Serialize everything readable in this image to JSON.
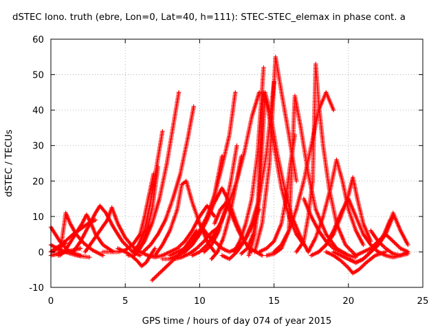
{
  "chart_data": {
    "type": "scatter",
    "title": "dSTEC Iono. truth (ebre, Lon=0, Lat=40, h=111): STEC-STEC_elemax in phase cont. a",
    "xlabel": "GPS time / hours of day 074 of year 2015",
    "ylabel": "dSTEC  / TECUs",
    "xlim": [
      0,
      25
    ],
    "ylim": [
      -10,
      60
    ],
    "x_ticks": [
      0,
      5,
      10,
      15,
      20,
      25
    ],
    "y_ticks": [
      -10,
      0,
      10,
      20,
      30,
      40,
      50,
      60
    ],
    "grid": true,
    "marker": "+",
    "color": "#ff0000",
    "arcs": [
      {
        "x": [
          0.0,
          0.3,
          0.6,
          0.9,
          1.2,
          1.6,
          2.0
        ],
        "y": [
          7,
          5,
          3,
          1.5,
          0.3,
          -0.5,
          -1
        ]
      },
      {
        "x": [
          0.0,
          0.4,
          0.8,
          1.2,
          1.6,
          2.0,
          2.6
        ],
        "y": [
          2,
          1,
          0.3,
          -0.3,
          -0.8,
          -1.2,
          -1.5
        ]
      },
      {
        "x": [
          0.0,
          0.3,
          0.6,
          1.0
        ],
        "y": [
          0,
          0.5,
          1.5,
          2.5
        ]
      },
      {
        "x": [
          0.0,
          0.5,
          1.0,
          1.5,
          2.0
        ],
        "y": [
          -1,
          -0.5,
          0,
          0.5,
          1
        ]
      },
      {
        "x": [
          0.0,
          0.3,
          0.7,
          1.1,
          1.5,
          2.0,
          2.5,
          3.0
        ],
        "y": [
          0,
          1,
          2,
          3.5,
          5,
          6.5,
          8,
          9
        ]
      },
      {
        "x": [
          0.5,
          0.7,
          1.0,
          1.3,
          1.7,
          2.2,
          2.8,
          3.5
        ],
        "y": [
          -1,
          2,
          11,
          8,
          5,
          2.5,
          0.5,
          -1
        ]
      },
      {
        "x": [
          0.6,
          0.9,
          1.2,
          1.5,
          1.8,
          2.1,
          2.4,
          2.7,
          3.0,
          3.5,
          4.2
        ],
        "y": [
          -1,
          0,
          2,
          4,
          6,
          8,
          10.5,
          8,
          5,
          2,
          0
        ]
      },
      {
        "x": [
          1.5,
          2.0,
          2.5,
          3.0,
          3.3,
          3.7,
          4.2,
          4.8,
          5.5,
          6.0
        ],
        "y": [
          0,
          3,
          7,
          11,
          13,
          11,
          7,
          3,
          0,
          -1
        ]
      },
      {
        "x": [
          2.3,
          2.8,
          3.3,
          3.8,
          4.1,
          4.5,
          5.0,
          5.5,
          6.0,
          6.5
        ],
        "y": [
          0,
          3,
          6,
          9,
          12.5,
          8,
          4,
          1.5,
          0,
          -1
        ]
      },
      {
        "x": [
          3.5,
          4.0,
          4.5,
          5.0,
          5.5,
          6.0,
          6.3,
          6.6,
          6.9
        ],
        "y": [
          0,
          0,
          0,
          0.5,
          2,
          5,
          10,
          16,
          22
        ]
      },
      {
        "x": [
          4.5,
          5.0,
          5.4,
          5.8,
          6.1,
          6.4,
          6.7,
          7.0
        ],
        "y": [
          1,
          0,
          -1,
          -2.5,
          -4,
          -3,
          -1,
          1
        ]
      },
      {
        "x": [
          5.2,
          5.6,
          6.0,
          6.4,
          6.8,
          7.0,
          7.2
        ],
        "y": [
          -1,
          -1,
          1,
          5,
          12,
          18,
          24
        ]
      },
      {
        "x": [
          5.5,
          5.9,
          6.3,
          6.7,
          7.1,
          7.5
        ],
        "y": [
          0,
          2,
          6,
          14,
          24,
          34
        ]
      },
      {
        "x": [
          5.8,
          6.3,
          6.8,
          7.3,
          7.8,
          8.2,
          8.6
        ],
        "y": [
          0,
          3,
          8,
          15,
          25,
          35,
          45
        ]
      },
      {
        "x": [
          6.2,
          6.7,
          7.2,
          7.7,
          8.2,
          8.7,
          9.2,
          9.6
        ],
        "y": [
          0,
          2,
          5,
          9,
          15,
          22,
          32,
          41
        ]
      },
      {
        "x": [
          6.5,
          7.0,
          7.5,
          8.0,
          8.5,
          9.0,
          9.5,
          10.0,
          10.5,
          11.0
        ],
        "y": [
          -1,
          -1.5,
          -1,
          0,
          1,
          3,
          6,
          10,
          13,
          10
        ]
      },
      {
        "x": [
          6.8,
          7.3,
          7.8,
          8.3,
          8.8,
          9.3,
          9.8
        ],
        "y": [
          -8,
          -6,
          -4,
          -2,
          0,
          3,
          6
        ]
      },
      {
        "x": [
          7.0,
          7.5,
          8.0,
          8.5,
          8.8,
          9.1,
          9.5,
          10.0,
          10.5,
          11.0
        ],
        "y": [
          -1,
          2,
          6,
          12,
          19,
          20,
          14,
          8,
          3,
          0
        ]
      },
      {
        "x": [
          7.5,
          8.0,
          8.5,
          9.0,
          9.5,
          10.0,
          10.5,
          11.0,
          11.5
        ],
        "y": [
          -2,
          -2,
          -1,
          0,
          2,
          5,
          10,
          16,
          27
        ]
      },
      {
        "x": [
          8.0,
          8.5,
          9.0,
          9.5,
          10.0,
          10.5,
          11.0,
          11.5,
          12.0,
          12.4
        ],
        "y": [
          -1,
          0,
          1,
          3,
          6,
          10,
          16,
          24,
          33,
          45
        ]
      },
      {
        "x": [
          8.3,
          8.8,
          9.3,
          9.8,
          10.3,
          10.8,
          11.3
        ],
        "y": [
          -2,
          -1.5,
          -0.5,
          1,
          3,
          5.5,
          7
        ]
      },
      {
        "x": [
          9.0,
          9.5,
          10.0,
          10.5,
          11.0,
          11.5,
          12.0,
          12.5,
          13.0,
          13.5
        ],
        "y": [
          0,
          2,
          5,
          9,
          14,
          18,
          14,
          8,
          3,
          0
        ]
      },
      {
        "x": [
          9.5,
          10.0,
          10.5,
          11.0,
          11.5,
          12.0,
          12.5,
          13.0,
          13.5,
          14.0
        ],
        "y": [
          -1,
          0,
          2,
          5,
          9,
          14,
          20,
          28,
          38,
          45
        ]
      },
      {
        "x": [
          10.0,
          10.5,
          11.0,
          11.5,
          12.0,
          12.5,
          13.0,
          13.5,
          14.0
        ],
        "y": [
          8,
          5,
          3,
          1,
          0,
          1,
          3,
          7,
          12
        ]
      },
      {
        "x": [
          10.3,
          10.8,
          11.3,
          11.7,
          12.1,
          12.5
        ],
        "y": [
          0,
          2,
          6,
          12,
          20,
          30
        ]
      },
      {
        "x": [
          10.8,
          11.2,
          11.6,
          12.0,
          12.4,
          12.8
        ],
        "y": [
          -2,
          0,
          4,
          10,
          18,
          27
        ]
      },
      {
        "x": [
          11.0,
          11.4,
          11.8,
          12.2,
          12.6,
          13.0,
          13.4,
          13.8,
          14.2
        ],
        "y": [
          8,
          12,
          14,
          10,
          6,
          3,
          1,
          0,
          -1
        ]
      },
      {
        "x": [
          11.5,
          12.0,
          12.5,
          13.0,
          13.5,
          14.0,
          14.5,
          15.0
        ],
        "y": [
          -1,
          -2,
          0,
          3,
          8,
          15,
          28,
          48
        ]
      },
      {
        "x": [
          12.3,
          12.7,
          13.1,
          13.5,
          13.9,
          14.3
        ],
        "y": [
          0,
          3,
          8,
          15,
          28,
          52
        ]
      },
      {
        "x": [
          12.8,
          13.2,
          13.6,
          13.9,
          14.1,
          14.3,
          14.6,
          15.0,
          15.5,
          16.0,
          16.5,
          17.0
        ],
        "y": [
          -0.5,
          1,
          5,
          13,
          30,
          45,
          40,
          30,
          18,
          10,
          5,
          2
        ]
      },
      {
        "x": [
          13.3,
          13.7,
          14.0,
          14.4,
          14.8,
          15.2,
          15.7,
          16.2,
          16.8,
          17.3
        ],
        "y": [
          -1,
          5,
          15,
          45,
          38,
          28,
          18,
          10,
          4,
          0
        ]
      },
      {
        "x": [
          13.7,
          14.2,
          14.7,
          15.1,
          15.5,
          16.0,
          16.5
        ],
        "y": [
          0,
          8,
          25,
          55,
          45,
          33,
          20
        ]
      },
      {
        "x": [
          14.0,
          14.5,
          15.0,
          15.5,
          15.8,
          16.1,
          16.4
        ],
        "y": [
          0,
          1,
          3,
          8,
          15,
          25,
          33
        ]
      },
      {
        "x": [
          14.5,
          15.0,
          15.5,
          16.0,
          16.4,
          16.8,
          17.3,
          17.8,
          18.5,
          19.2,
          20.0
        ],
        "y": [
          -1,
          -0.5,
          1,
          6,
          44,
          35,
          22,
          12,
          5,
          1,
          -1
        ]
      },
      {
        "x": [
          15.0,
          15.5,
          16.0,
          16.5,
          17.0,
          17.5,
          18.0,
          18.5,
          19.0
        ],
        "y": [
          0,
          2,
          6,
          12,
          20,
          30,
          40,
          45,
          40
        ]
      },
      {
        "x": [
          16.5,
          17.0,
          17.3,
          17.6,
          17.8,
          18.0,
          18.3,
          18.7,
          19.2,
          19.8,
          20.5
        ],
        "y": [
          0,
          3,
          10,
          20,
          53,
          42,
          30,
          18,
          8,
          2,
          -1
        ]
      },
      {
        "x": [
          17.0,
          17.5,
          18.0,
          18.5,
          19.0,
          19.5,
          20.0,
          20.5
        ],
        "y": [
          15,
          10,
          6,
          3,
          1,
          0,
          -1,
          -1.5
        ]
      },
      {
        "x": [
          17.3,
          17.8,
          18.3,
          18.8,
          19.2,
          19.6,
          20.0,
          20.5,
          21.0
        ],
        "y": [
          0,
          4,
          10,
          18,
          26,
          20,
          12,
          6,
          2
        ]
      },
      {
        "x": [
          17.5,
          18.0,
          18.5,
          19.0,
          19.5,
          20.0,
          20.3,
          20.6,
          21.0,
          21.5
        ],
        "y": [
          -1,
          0,
          2,
          5,
          10,
          16,
          21,
          15,
          8,
          3
        ]
      },
      {
        "x": [
          18.0,
          18.5,
          19.0,
          19.5,
          20.0,
          20.5,
          21.0,
          21.5,
          22.0
        ],
        "y": [
          0,
          2,
          6,
          11,
          15,
          10,
          5,
          2,
          0
        ]
      },
      {
        "x": [
          18.5,
          19.0,
          19.5,
          20.0,
          20.3,
          20.7,
          21.2,
          21.8,
          22.5
        ],
        "y": [
          0,
          -1,
          -2.5,
          -4.5,
          -6,
          -5,
          -3,
          -1,
          0
        ]
      },
      {
        "x": [
          19.0,
          19.5,
          20.0,
          20.5,
          21.0,
          21.5,
          22.0,
          22.5,
          23.0
        ],
        "y": [
          0,
          -1,
          -2,
          -3,
          -2,
          0,
          2,
          5,
          10
        ]
      },
      {
        "x": [
          19.5,
          20.0,
          20.5,
          21.0,
          21.5,
          22.0,
          22.4,
          22.8
        ],
        "y": [
          -1,
          -2,
          -3,
          -2,
          0,
          2,
          5,
          9
        ]
      },
      {
        "x": [
          20.0,
          20.5,
          21.0,
          21.5,
          22.0,
          22.5,
          23.0,
          23.5,
          24.0
        ],
        "y": [
          -2,
          -3,
          -2,
          0,
          2,
          5,
          11,
          6,
          2
        ]
      },
      {
        "x": [
          20.5,
          21.0,
          21.5,
          22.0,
          22.5,
          23.0,
          23.5,
          24.0
        ],
        "y": [
          -1,
          0,
          1,
          3,
          5,
          3,
          1,
          0
        ]
      },
      {
        "x": [
          21.5,
          22.0,
          22.5,
          23.0,
          23.5,
          24.0
        ],
        "y": [
          6,
          3,
          1,
          -0.5,
          -1,
          -0.5
        ]
      },
      {
        "x": [
          22.0,
          22.5,
          23.0,
          23.5,
          24.0
        ],
        "y": [
          0,
          -1,
          -1.5,
          -1,
          0
        ]
      }
    ]
  }
}
